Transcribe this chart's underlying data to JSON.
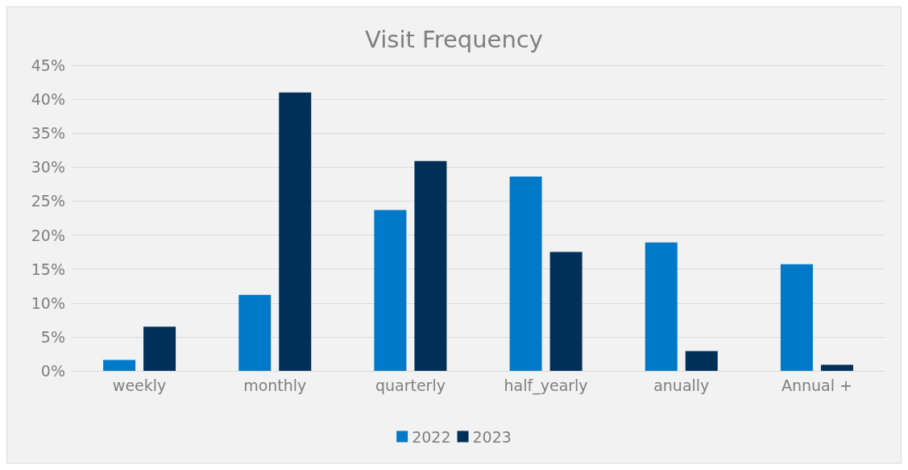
{
  "chart_data": {
    "type": "bar",
    "title": "Visit Frequency",
    "categories": [
      "weekly",
      "monthly",
      "quarterly",
      "half_yearly",
      "anually",
      "Annual +"
    ],
    "series": [
      {
        "name": "2022",
        "color": "#0079c8",
        "values": [
          1.6,
          11.2,
          23.7,
          28.6,
          18.9,
          15.7
        ]
      },
      {
        "name": "2023",
        "color": "#003057",
        "values": [
          6.5,
          41,
          30.9,
          17.5,
          2.9,
          0.9
        ]
      }
    ],
    "ylim": [
      0,
      45
    ],
    "yticks": [
      {
        "value": 0,
        "label": "0%"
      },
      {
        "value": 5,
        "label": "5%"
      },
      {
        "value": 10,
        "label": "10%"
      },
      {
        "value": 15,
        "label": "15%"
      },
      {
        "value": 20,
        "label": "20%"
      },
      {
        "value": 25,
        "label": "25%"
      },
      {
        "value": 30,
        "label": "30%"
      },
      {
        "value": 35,
        "label": "35%"
      },
      {
        "value": 40,
        "label": "40%"
      },
      {
        "value": 45,
        "label": "45%"
      }
    ],
    "grid": "y",
    "legend": "bottom"
  }
}
